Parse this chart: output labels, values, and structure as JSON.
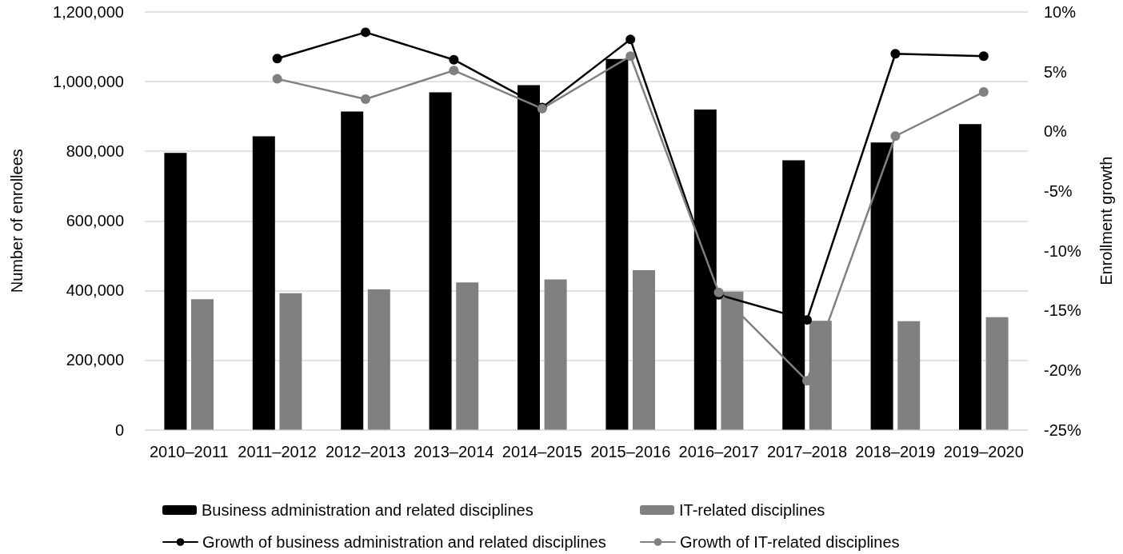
{
  "chart_data": {
    "type": "bar",
    "ylabel": "Number of enrollees",
    "y2label": "Enrollment growth",
    "categories": [
      "2010–2011",
      "2011–2012",
      "2012–2013",
      "2013–2014",
      "2014–2015",
      "2015–2016",
      "2016–2017",
      "2017–2018",
      "2018–2019",
      "2019–2020"
    ],
    "series": [
      {
        "name": "Business administration and related disciplines",
        "color": "#000000",
        "values": [
          795000,
          843000,
          914000,
          969000,
          990000,
          1065000,
          920000,
          774000,
          825000,
          878000
        ]
      },
      {
        "name": "IT-related disciplines",
        "color": "#808080",
        "values": [
          375000,
          392000,
          403000,
          423000,
          432000,
          458000,
          397000,
          313000,
          312000,
          323000
        ]
      },
      {
        "name": "Growth of business administration and related disciplines",
        "type": "line",
        "axis": "y2",
        "color": "#000000",
        "values": [
          null,
          6.1,
          8.3,
          6.0,
          2.0,
          7.7,
          -13.7,
          -15.8,
          6.5,
          6.3
        ]
      },
      {
        "name": "Growth of IT-related disciplines",
        "type": "line",
        "axis": "y2",
        "color": "#808080",
        "values": [
          null,
          4.4,
          2.7,
          5.1,
          1.9,
          6.3,
          -13.5,
          -20.9,
          -0.4,
          3.3
        ]
      }
    ],
    "ylim": [
      0,
      1200000
    ],
    "yticks": [
      0,
      {
        "value": 200000,
        "label": "200,000"
      },
      {
        "value": 400000,
        "label": "400,000"
      },
      {
        "value": 600000,
        "label": "600,000"
      },
      {
        "value": 800000,
        "label": "800,000"
      },
      {
        "value": 1000000,
        "label": "1,000,000"
      },
      {
        "value": 1200000,
        "label": "1,200,000"
      }
    ],
    "y2lim": [
      -25,
      10
    ],
    "y2ticks": [
      {
        "value": -25,
        "label": "-25%"
      },
      {
        "value": -20,
        "label": "-20%"
      },
      {
        "value": -15,
        "label": "-15%"
      },
      {
        "value": -10,
        "label": "-10%"
      },
      {
        "value": -5,
        "label": "-5%"
      },
      {
        "value": 0,
        "label": "0%"
      },
      {
        "value": 5,
        "label": "5%"
      },
      {
        "value": 10,
        "label": "10%"
      }
    ],
    "grid": "y",
    "legend": "bottom",
    "marker": "circle",
    "line_style": "solid"
  }
}
